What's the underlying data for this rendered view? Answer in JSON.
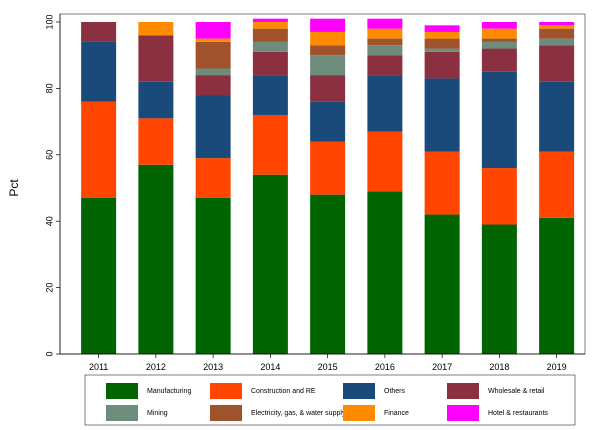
{
  "chart_data": {
    "type": "bar",
    "stacked": true,
    "ylabel": "Pct",
    "xlabel": "",
    "ylim": [
      0,
      100
    ],
    "yticks": [
      0,
      20,
      40,
      60,
      80,
      100
    ],
    "grid": false,
    "legend_position": "bottom",
    "categories": [
      "2011",
      "2012",
      "2013",
      "2014",
      "2015",
      "2016",
      "2017",
      "2018",
      "2019"
    ],
    "series": [
      {
        "name": "Manufacturing",
        "color": "#006400",
        "values": [
          47,
          57,
          47,
          54,
          48,
          49,
          42,
          39,
          41
        ]
      },
      {
        "name": "Construction and RE",
        "color": "#ff4500",
        "values": [
          29,
          14,
          12,
          18,
          16,
          18,
          19,
          17,
          20
        ]
      },
      {
        "name": "Others",
        "color": "#1a4a7a",
        "values": [
          18,
          11,
          19,
          12,
          12,
          17,
          22,
          29,
          21
        ]
      },
      {
        "name": "Wholesale & retail",
        "color": "#8b3040",
        "values": [
          6,
          14,
          6,
          7,
          8,
          6,
          8,
          7,
          11
        ]
      },
      {
        "name": "Mining",
        "color": "#6e8c7c",
        "values": [
          0,
          0,
          2,
          3,
          6,
          3,
          1,
          2,
          2
        ]
      },
      {
        "name": "Electricity, gas, & water supply",
        "color": "#a0522d",
        "values": [
          0,
          0,
          8,
          4,
          3,
          2,
          3,
          1,
          3
        ]
      },
      {
        "name": "Finance",
        "color": "#ff8c00",
        "values": [
          0,
          4,
          1,
          2,
          4,
          3,
          2,
          3,
          1
        ]
      },
      {
        "name": "Hotel & restaurants",
        "color": "#ff00ff",
        "values": [
          0,
          0,
          5,
          1,
          4,
          3,
          2,
          2,
          1
        ]
      }
    ]
  }
}
